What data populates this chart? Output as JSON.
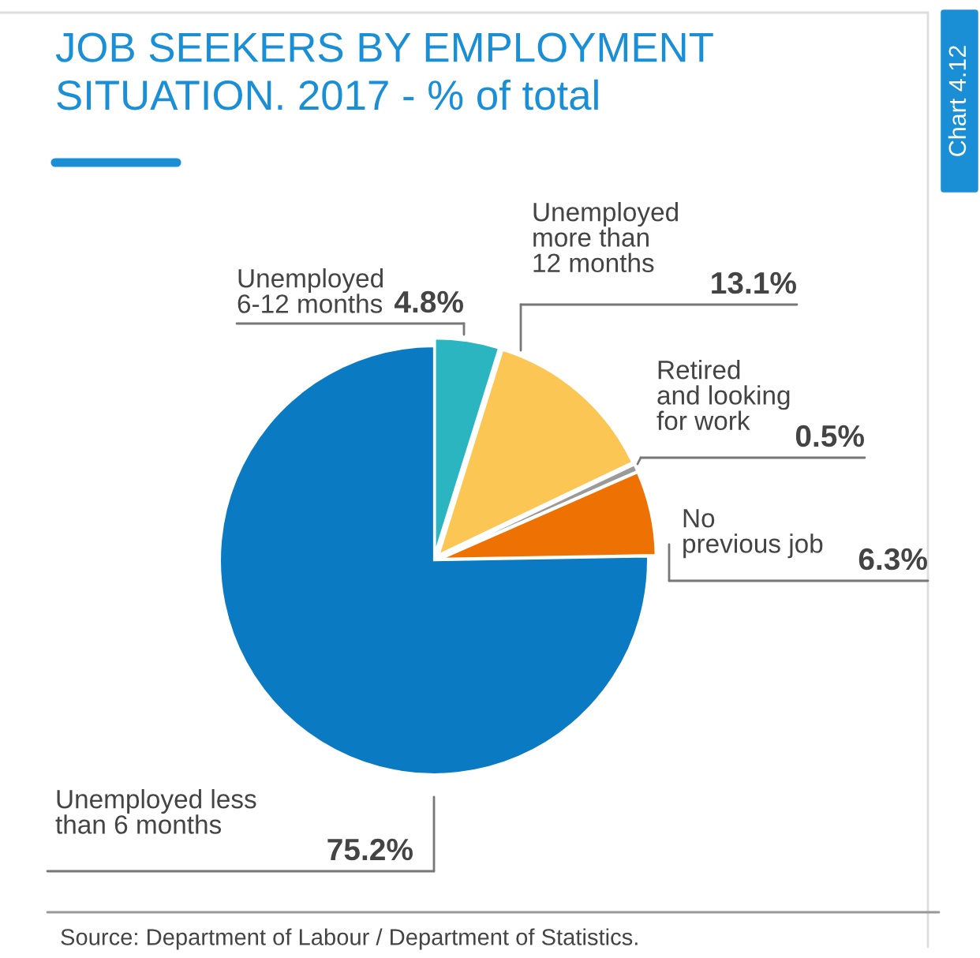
{
  "chart_data": {
    "type": "pie",
    "title": "JOB SEEKERS BY EMPLOYMENT\nSITUATION. 2017 - % of total",
    "categories": [
      "Unemployed\n6-12 months",
      "Unemployed\nmore than\n12 months",
      "Retired\nand looking\nfor work",
      "No\nprevious job",
      "Unemployed less\nthan 6 months"
    ],
    "values": [
      4.8,
      13.1,
      0.5,
      6.3,
      75.2
    ],
    "value_labels": [
      "4.8%",
      "13.1%",
      "0.5%",
      "6.3%",
      "75.2%"
    ],
    "colors": [
      "#2bb5c0",
      "#fcc655",
      "#9a9a9a",
      "#ee7203",
      "#0a7ac2"
    ],
    "annotations": [
      "Chart 4.12",
      "Source: Department of Labour / Department of Statistics."
    ],
    "legend": false
  }
}
